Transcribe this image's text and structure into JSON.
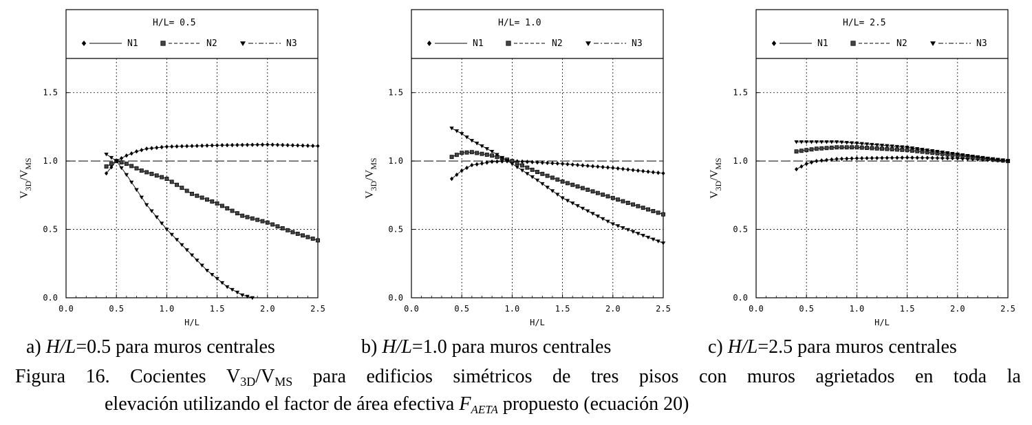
{
  "figure": {
    "subcaptions": [
      {
        "letter": "a) ",
        "var": "H/L",
        "rest": "=0.5 para muros centrales"
      },
      {
        "letter": "b) ",
        "var": "H/L",
        "rest": "=1.0 para muros centrales"
      },
      {
        "letter": "c) ",
        "var": "H/L",
        "rest": "=2.5 para muros centrales"
      }
    ],
    "caption_line1_words": [
      "Figura",
      "16.",
      "Cocientes",
      "V3D/VMS",
      "para",
      "edificios",
      "simétricos",
      "de",
      "tres",
      "pisos",
      "con",
      "muros",
      "agrietados",
      "en",
      "toda",
      "la"
    ],
    "caption_ratio": {
      "v": "V",
      "sub1": "3D",
      "sep": "/V",
      "sub2": "MS"
    },
    "caption_line2_before": "elevación utilizando el factor de área efectiva ",
    "caption_factor": {
      "f": "F",
      "sub": "AETA"
    },
    "caption_line2_after": " propuesto (ecuación 20)"
  },
  "chart_data": [
    {
      "type": "line",
      "title": "H/L= 0.5",
      "xlabel": "H/L",
      "ylabel": "V3D/VMS",
      "ylabel_parts": {
        "v": "V",
        "sub1": "3D",
        "sep": "/V",
        "sub2": "MS"
      },
      "xlim": [
        0,
        2.5
      ],
      "ylim": [
        0,
        1.75
      ],
      "xticks": [
        0.0,
        0.5,
        1.0,
        1.5,
        2.0,
        2.5
      ],
      "xtick_labels": [
        "0.0",
        "0.5",
        "1.0",
        "1.5",
        "2.0",
        "2.5"
      ],
      "yticks": [
        0.0,
        0.5,
        1.0,
        1.5
      ],
      "ytick_labels": [
        "0.0",
        "0.5",
        "1.0",
        "1.5"
      ],
      "grid": true,
      "reference_line": 1.0,
      "legend_position": "top",
      "series": [
        {
          "name": "N1",
          "marker": "diamond",
          "linestyle": "solid",
          "x": [
            0.4,
            0.5,
            0.6,
            0.7,
            0.8,
            1.0,
            1.25,
            1.5,
            2.0,
            2.5
          ],
          "y": [
            0.91,
            1.0,
            1.04,
            1.07,
            1.09,
            1.105,
            1.11,
            1.115,
            1.12,
            1.11
          ]
        },
        {
          "name": "N2",
          "marker": "square",
          "linestyle": "dashed",
          "x": [
            0.4,
            0.5,
            0.6,
            0.75,
            1.0,
            1.25,
            1.5,
            1.75,
            2.0,
            2.25,
            2.5
          ],
          "y": [
            0.96,
            1.0,
            0.98,
            0.93,
            0.87,
            0.76,
            0.69,
            0.6,
            0.55,
            0.48,
            0.42
          ]
        },
        {
          "name": "N3",
          "marker": "triangle-down",
          "linestyle": "dashdot",
          "x": [
            0.4,
            0.5,
            0.6,
            0.7,
            0.8,
            1.0,
            1.2,
            1.4,
            1.6,
            1.75,
            1.85
          ],
          "y": [
            1.05,
            1.0,
            0.9,
            0.79,
            0.68,
            0.5,
            0.35,
            0.2,
            0.08,
            0.02,
            0.0
          ]
        }
      ]
    },
    {
      "type": "line",
      "title": "H/L= 1.0",
      "xlabel": "H/L",
      "ylabel": "V3D/VMS",
      "ylabel_parts": {
        "v": "V",
        "sub1": "3D",
        "sep": "/V",
        "sub2": "MS"
      },
      "xlim": [
        0,
        2.5
      ],
      "ylim": [
        0,
        1.75
      ],
      "xticks": [
        0.0,
        0.5,
        1.0,
        1.5,
        2.0,
        2.5
      ],
      "xtick_labels": [
        "0.0",
        "0.5",
        "1.0",
        "1.5",
        "2.0",
        "2.5"
      ],
      "yticks": [
        0.0,
        0.5,
        1.0,
        1.5
      ],
      "ytick_labels": [
        "0.0",
        "0.5",
        "1.0",
        "1.5"
      ],
      "grid": true,
      "reference_line": 1.0,
      "legend_position": "top",
      "series": [
        {
          "name": "N1",
          "marker": "diamond",
          "linestyle": "solid",
          "x": [
            0.4,
            0.5,
            0.6,
            0.8,
            1.0,
            1.5,
            2.0,
            2.5
          ],
          "y": [
            0.87,
            0.93,
            0.97,
            0.995,
            1.0,
            0.98,
            0.95,
            0.91
          ]
        },
        {
          "name": "N2",
          "marker": "square",
          "linestyle": "dashed",
          "x": [
            0.4,
            0.5,
            0.6,
            0.8,
            1.0,
            1.25,
            1.5,
            2.0,
            2.5
          ],
          "y": [
            1.03,
            1.06,
            1.065,
            1.04,
            1.0,
            0.92,
            0.85,
            0.73,
            0.61
          ]
        },
        {
          "name": "N3",
          "marker": "triangle-down",
          "linestyle": "dashdot",
          "x": [
            0.4,
            0.5,
            0.6,
            0.8,
            1.0,
            1.25,
            1.5,
            2.0,
            2.5
          ],
          "y": [
            1.24,
            1.2,
            1.15,
            1.07,
            0.98,
            0.86,
            0.73,
            0.54,
            0.4
          ]
        }
      ]
    },
    {
      "type": "line",
      "title": "H/L= 2.5",
      "xlabel": "H/L",
      "ylabel": "V3D/VMS",
      "ylabel_parts": {
        "v": "V",
        "sub1": "3D",
        "sep": "/V",
        "sub2": "MS"
      },
      "xlim": [
        0,
        2.5
      ],
      "ylim": [
        0,
        1.75
      ],
      "xticks": [
        0.0,
        0.5,
        1.0,
        1.5,
        2.0,
        2.5
      ],
      "xtick_labels": [
        "0.0",
        "0.5",
        "1.0",
        "1.5",
        "2.0",
        "2.5"
      ],
      "yticks": [
        0.0,
        0.5,
        1.0,
        1.5
      ],
      "ytick_labels": [
        "0.0",
        "0.5",
        "1.0",
        "1.5"
      ],
      "grid": true,
      "reference_line": 1.0,
      "legend_position": "top",
      "series": [
        {
          "name": "N1",
          "marker": "diamond",
          "linestyle": "solid",
          "x": [
            0.4,
            0.5,
            0.6,
            0.8,
            1.0,
            1.5,
            2.0,
            2.5
          ],
          "y": [
            0.94,
            0.98,
            1.0,
            1.015,
            1.02,
            1.025,
            1.02,
            1.0
          ]
        },
        {
          "name": "N2",
          "marker": "square",
          "linestyle": "dashed",
          "x": [
            0.4,
            0.6,
            0.8,
            1.0,
            1.5,
            2.0,
            2.5
          ],
          "y": [
            1.07,
            1.09,
            1.1,
            1.1,
            1.08,
            1.04,
            1.0
          ]
        },
        {
          "name": "N3",
          "marker": "triangle-down",
          "linestyle": "dashdot",
          "x": [
            0.4,
            0.6,
            0.8,
            1.0,
            1.5,
            2.0,
            2.5
          ],
          "y": [
            1.14,
            1.14,
            1.14,
            1.13,
            1.1,
            1.05,
            1.0
          ]
        }
      ]
    }
  ]
}
